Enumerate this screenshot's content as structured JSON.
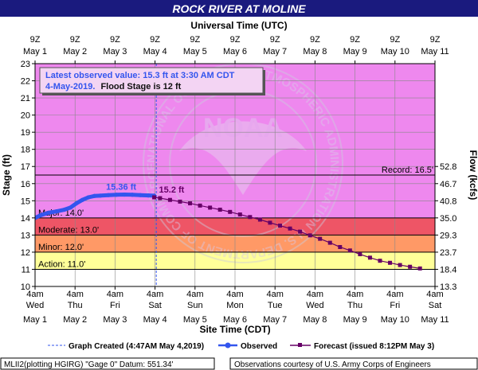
{
  "header": {
    "title": "ROCK RIVER AT MOLINE",
    "top_axis_title": "Universal Time (UTC)"
  },
  "info_box": {
    "line1": "Latest observed value: 15.3 ft at 3:30 AM CDT",
    "line2_date": "4-May-2019.",
    "line2_flood": "Flood Stage is 12 ft"
  },
  "footer": {
    "datum": "MLII2(plotting HGIRG) \"Gage 0\" Datum: 551.34'",
    "credit": "Observations courtesy of U.S. Army Corps of Engineers"
  },
  "watermark": {
    "agency": "NOAA",
    "ring_text": "NATIONAL OCEANIC AND ATMOSPHERIC ADMINISTRATION  U.S. DEPARTMENT OF COMMERCE"
  },
  "colors": {
    "plot_bg": "#ee88ee",
    "record_band": "#ee88ee",
    "major_band": "#ee5566",
    "moderate_band": "#ff9966",
    "minor_band": "#ffee55",
    "action_band": "#ffff99",
    "normal_band": "#ffffff",
    "observed": "#3355ee",
    "forecast": "#660066",
    "title_bg": "#1a1a7e"
  },
  "chart_data": {
    "type": "line",
    "title": "ROCK RIVER AT MOLINE",
    "xlabel": "Site Time (CDT)",
    "xlabel_top": "Universal Time (UTC)",
    "ylabel": "Stage (ft)",
    "ylabel_right": "Flow (kcfs)",
    "ylim": [
      10,
      23
    ],
    "x_unit": "days since May 1 00:00 CDT",
    "xlim": [
      0.1667,
      10.1667
    ],
    "y_ticks": [
      10,
      11,
      12,
      13,
      14,
      15,
      16,
      17,
      18,
      19,
      20,
      21,
      22,
      23
    ],
    "right_ticks": [
      {
        "stage": 10,
        "label": "13.3"
      },
      {
        "stage": 11,
        "label": "18.4"
      },
      {
        "stage": 12,
        "label": "23.7"
      },
      {
        "stage": 13,
        "label": "29.3"
      },
      {
        "stage": 14,
        "label": "35.0"
      },
      {
        "stage": 15,
        "label": "40.8"
      },
      {
        "stage": 16,
        "label": "46.7"
      },
      {
        "stage": 17,
        "label": "52.8"
      }
    ],
    "bottom_ticks": [
      {
        "time": "4am",
        "day": "Wed",
        "date": "May 1"
      },
      {
        "time": "4am",
        "day": "Thu",
        "date": "May 2"
      },
      {
        "time": "4am",
        "day": "Fri",
        "date": "May 3"
      },
      {
        "time": "4am",
        "day": "Sat",
        "date": "May 4"
      },
      {
        "time": "4am",
        "day": "Sun",
        "date": "May 5"
      },
      {
        "time": "4am",
        "day": "Mon",
        "date": "May 6"
      },
      {
        "time": "4am",
        "day": "Tue",
        "date": "May 7"
      },
      {
        "time": "4am",
        "day": "Wed",
        "date": "May 8"
      },
      {
        "time": "4am",
        "day": "Thu",
        "date": "May 9"
      },
      {
        "time": "4am",
        "day": "Fri",
        "date": "May 10"
      },
      {
        "time": "4am",
        "day": "Sat",
        "date": "May 11"
      }
    ],
    "top_ticks": [
      {
        "time": "9Z",
        "date": "May 1"
      },
      {
        "time": "9Z",
        "date": "May 2"
      },
      {
        "time": "9Z",
        "date": "May 3"
      },
      {
        "time": "9Z",
        "date": "May 4"
      },
      {
        "time": "9Z",
        "date": "May 5"
      },
      {
        "time": "9Z",
        "date": "May 6"
      },
      {
        "time": "9Z",
        "date": "May 7"
      },
      {
        "time": "9Z",
        "date": "May 8"
      },
      {
        "time": "9Z",
        "date": "May 9"
      },
      {
        "time": "9Z",
        "date": "May 10"
      },
      {
        "time": "9Z",
        "date": "May 11"
      }
    ],
    "flood_categories": [
      {
        "name": "Record",
        "label": "Record: 16.5'",
        "stage": 16.5
      },
      {
        "name": "Major",
        "label": "Major: 14.0'",
        "stage": 14.0
      },
      {
        "name": "Moderate",
        "label": "Moderate: 13.0'",
        "stage": 13.0
      },
      {
        "name": "Minor",
        "label": "Minor: 12.0'",
        "stage": 12.0
      },
      {
        "name": "Action",
        "label": "Action: 11.0'",
        "stage": 11.0
      }
    ],
    "graph_created_day": 3.198,
    "series": [
      {
        "name": "Observed",
        "style": "line",
        "x": [
          0.17,
          0.3,
          0.5,
          0.7,
          0.9,
          1.05,
          1.2,
          1.35,
          1.5,
          1.65,
          1.8,
          2.0,
          2.2,
          2.4,
          2.6,
          2.8,
          3.0,
          3.146
        ],
        "y": [
          14.0,
          14.15,
          14.3,
          14.38,
          14.48,
          14.6,
          14.85,
          15.05,
          15.2,
          15.28,
          15.3,
          15.33,
          15.35,
          15.36,
          15.35,
          15.33,
          15.31,
          15.3
        ]
      },
      {
        "name": "Forecast",
        "style": "line+square",
        "x": [
          3.146,
          3.292,
          3.542,
          3.792,
          4.042,
          4.292,
          4.542,
          4.792,
          5.042,
          5.292,
          5.542,
          5.792,
          6.042,
          6.292,
          6.542,
          6.792,
          7.042,
          7.292,
          7.542,
          7.792,
          8.042,
          8.292,
          8.542,
          8.792,
          9.042,
          9.292,
          9.542,
          9.792
        ],
        "y": [
          15.2,
          15.15,
          15.05,
          14.95,
          14.85,
          14.72,
          14.6,
          14.48,
          14.35,
          14.2,
          14.05,
          13.9,
          13.72,
          13.55,
          13.38,
          13.2,
          12.98,
          12.78,
          12.55,
          12.3,
          12.1,
          11.88,
          11.68,
          11.5,
          11.38,
          11.25,
          11.15,
          11.05
        ]
      }
    ],
    "annotations": [
      {
        "text": "15.36 ft",
        "series": "Observed",
        "x": 2.4,
        "y": 15.36
      },
      {
        "text": "15.2 ft",
        "series": "Forecast",
        "x": 3.146,
        "y": 15.2
      }
    ],
    "legend": {
      "graph_created": "Graph Created (4:47AM May 4,2019)",
      "observed": "Observed",
      "forecast": "Forecast (issued 8:12PM May 3)"
    }
  }
}
